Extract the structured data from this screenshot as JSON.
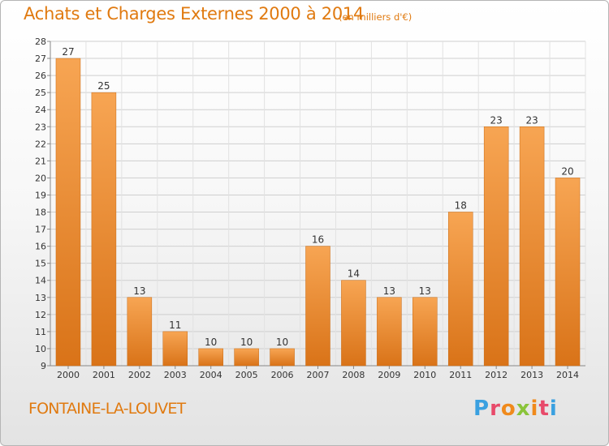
{
  "header": {
    "title": "Achats et Charges Externes 2000 à 2014",
    "subtitle": "(en milliers d'€)"
  },
  "footer": {
    "commune": "FONTAINE-LA-LOUVET",
    "logo": "Proxiti"
  },
  "colors": {
    "accent": "#e07a10",
    "bar_light": "#f7a553",
    "bar_dark": "#d97318",
    "grid": "#cfcfcf"
  },
  "chart_data": {
    "type": "bar",
    "title": "Achats et Charges Externes 2000 à 2014",
    "subtitle": "(en milliers d'€)",
    "xlabel": "",
    "ylabel": "",
    "categories": [
      "2000",
      "2001",
      "2002",
      "2003",
      "2004",
      "2005",
      "2006",
      "2007",
      "2008",
      "2009",
      "2010",
      "2011",
      "2012",
      "2013",
      "2014"
    ],
    "values": [
      27,
      25,
      13,
      11,
      10,
      10,
      10,
      16,
      14,
      13,
      13,
      18,
      23,
      23,
      20
    ],
    "ylim": [
      9,
      28
    ],
    "yticks": [
      9,
      10,
      11,
      12,
      13,
      14,
      15,
      16,
      17,
      18,
      19,
      20,
      21,
      22,
      23,
      24,
      25,
      26,
      27,
      28
    ],
    "grid": true,
    "legend": "none"
  }
}
